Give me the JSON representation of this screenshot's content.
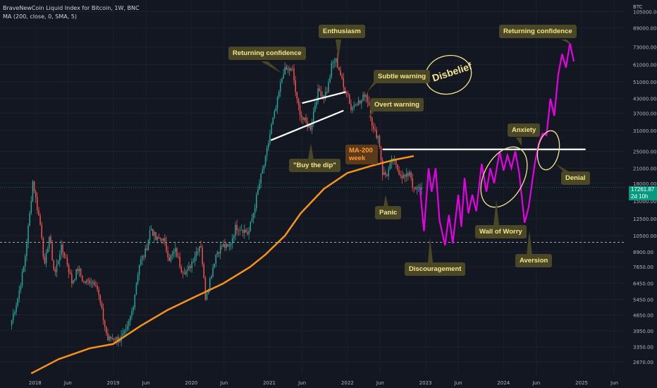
{
  "header": {
    "title": "BraveNewCoin Liquid Index for Bitcoin, 1W, BNC",
    "indicator": "MA (200, close, 0, SMA, 5)"
  },
  "price_tag": {
    "value": "17261.87",
    "countdown": "2d 10h"
  },
  "annotations": {
    "returning_confidence_1": "Returning confidence",
    "enthusiasm": "Enthusiasm",
    "subtle_warning": "Subtle warning",
    "disbelief": "Disbelief",
    "overt_warning": "Overt warning",
    "buy_the_dip": "\"Buy the dip\"",
    "ma200": "MA-200 week",
    "panic": "Panic",
    "discouragement": "Discouragement",
    "wall_of_worry": "Wall of Worry",
    "anxiety": "Anxiety",
    "aversion": "Aversion",
    "returning_confidence_2": "Returning confidence",
    "denial": "Denial"
  },
  "colors": {
    "background": "#131722",
    "up": "#26a69a",
    "down": "#ef5350",
    "ma": "#f7931a",
    "projection": "#e600e6",
    "annotation_bg": "#4a4726",
    "annotation_text": "#f6e58d",
    "trendline": "#ffffff"
  },
  "chart_data": {
    "type": "line",
    "title": "BraveNewCoin Liquid Index for Bitcoin, 1W, BNC",
    "scale": "log",
    "y_axis_label": "BTC",
    "y_ticks": [
      105000,
      89000,
      73000,
      61000,
      51000,
      43000,
      37000,
      31000,
      25000,
      21000,
      18000,
      15000,
      12500,
      10500,
      8900,
      7650,
      6450,
      5450,
      4650,
      3950,
      3350,
      2870
    ],
    "x_ticks": [
      "2018",
      "Jun",
      "2019",
      "Jun",
      "2020",
      "Jun",
      "2021",
      "Jun",
      "2022",
      "Jun",
      "2023",
      "Jun",
      "2024",
      "Jun",
      "2025",
      "Jun"
    ],
    "ylim": [
      2500,
      115000
    ],
    "xlim": [
      2017.55,
      2025.55
    ],
    "horizontal_level": 9800,
    "last_price": 17261.87,
    "series": [
      {
        "type": "candlestick",
        "points": [
          [
            2017.7,
            4400
          ],
          [
            2017.78,
            5600
          ],
          [
            2017.86,
            7800
          ],
          [
            2017.93,
            13000
          ],
          [
            2017.97,
            18500
          ],
          [
            2018.02,
            14500
          ],
          [
            2018.08,
            11000
          ],
          [
            2018.12,
            7500
          ],
          [
            2018.18,
            10500
          ],
          [
            2018.25,
            7000
          ],
          [
            2018.33,
            9300
          ],
          [
            2018.4,
            8200
          ],
          [
            2018.47,
            6500
          ],
          [
            2018.55,
            7500
          ],
          [
            2018.62,
            6500
          ],
          [
            2018.7,
            6600
          ],
          [
            2018.78,
            6500
          ],
          [
            2018.87,
            4500
          ],
          [
            2018.93,
            3600
          ],
          [
            2019.0,
            3700
          ],
          [
            2019.08,
            3600
          ],
          [
            2019.17,
            3900
          ],
          [
            2019.25,
            5000
          ],
          [
            2019.33,
            7800
          ],
          [
            2019.42,
            9000
          ],
          [
            2019.48,
            11500
          ],
          [
            2019.55,
            10000
          ],
          [
            2019.63,
            10300
          ],
          [
            2019.72,
            8300
          ],
          [
            2019.8,
            9000
          ],
          [
            2019.87,
            7500
          ],
          [
            2019.95,
            7200
          ],
          [
            2020.03,
            8400
          ],
          [
            2020.12,
            9800
          ],
          [
            2020.18,
            5600
          ],
          [
            2020.23,
            6500
          ],
          [
            2020.32,
            8800
          ],
          [
            2020.4,
            9500
          ],
          [
            2020.48,
            9200
          ],
          [
            2020.57,
            11500
          ],
          [
            2020.65,
            11300
          ],
          [
            2020.73,
            10700
          ],
          [
            2020.8,
            13500
          ],
          [
            2020.88,
            18500
          ],
          [
            2020.95,
            23000
          ],
          [
            2021.03,
            33000
          ],
          [
            2021.08,
            38000
          ],
          [
            2021.13,
            47000
          ],
          [
            2021.18,
            57000
          ],
          [
            2021.25,
            58000
          ],
          [
            2021.3,
            57000
          ],
          [
            2021.35,
            42000
          ],
          [
            2021.42,
            35000
          ],
          [
            2021.48,
            33000
          ],
          [
            2021.53,
            32000
          ],
          [
            2021.58,
            40000
          ],
          [
            2021.63,
            47000
          ],
          [
            2021.7,
            44000
          ],
          [
            2021.75,
            48000
          ],
          [
            2021.8,
            61000
          ],
          [
            2021.85,
            64000
          ],
          [
            2021.9,
            57000
          ],
          [
            2021.95,
            48000
          ],
          [
            2022.0,
            46000
          ],
          [
            2022.05,
            38000
          ],
          [
            2022.1,
            42000
          ],
          [
            2022.17,
            41000
          ],
          [
            2022.23,
            46000
          ],
          [
            2022.28,
            40000
          ],
          [
            2022.33,
            31000
          ],
          [
            2022.4,
            29000
          ],
          [
            2022.45,
            20000
          ],
          [
            2022.5,
            19500
          ],
          [
            2022.58,
            23000
          ],
          [
            2022.63,
            21000
          ],
          [
            2022.7,
            19500
          ],
          [
            2022.75,
            19000
          ],
          [
            2022.8,
            20500
          ],
          [
            2022.85,
            16500
          ],
          [
            2022.9,
            17000
          ],
          [
            2022.95,
            17261.87
          ]
        ]
      },
      {
        "name": "MA (200, close, 0, SMA, 5)",
        "type": "line",
        "points": [
          [
            2017.95,
            2550
          ],
          [
            2018.3,
            2950
          ],
          [
            2018.7,
            3300
          ],
          [
            2019.0,
            3450
          ],
          [
            2019.35,
            4150
          ],
          [
            2019.7,
            4900
          ],
          [
            2020.0,
            5500
          ],
          [
            2020.4,
            6400
          ],
          [
            2020.75,
            7600
          ],
          [
            2020.95,
            8650
          ],
          [
            2021.2,
            10500
          ],
          [
            2021.4,
            13200
          ],
          [
            2021.7,
            17000
          ],
          [
            2022.0,
            20000
          ],
          [
            2022.3,
            21500
          ],
          [
            2022.6,
            22900
          ],
          [
            2022.85,
            23800
          ]
        ]
      },
      {
        "name": "Projection",
        "type": "line",
        "points": [
          [
            2022.93,
            17000
          ],
          [
            2022.98,
            11000
          ],
          [
            2023.04,
            21000
          ],
          [
            2023.08,
            16500
          ],
          [
            2023.13,
            21000
          ],
          [
            2023.18,
            12300
          ],
          [
            2023.25,
            9500
          ],
          [
            2023.3,
            13000
          ],
          [
            2023.35,
            9700
          ],
          [
            2023.42,
            16000
          ],
          [
            2023.46,
            11500
          ],
          [
            2023.5,
            19000
          ],
          [
            2023.55,
            13200
          ],
          [
            2023.6,
            16000
          ],
          [
            2023.65,
            13500
          ],
          [
            2023.72,
            22000
          ],
          [
            2023.78,
            16500
          ],
          [
            2023.83,
            21000
          ],
          [
            2023.88,
            18000
          ],
          [
            2023.95,
            25000
          ],
          [
            2024.0,
            20500
          ],
          [
            2024.05,
            24000
          ],
          [
            2024.1,
            21000
          ],
          [
            2024.15,
            25000
          ],
          [
            2024.2,
            20000
          ],
          [
            2024.27,
            12000
          ],
          [
            2024.32,
            14000
          ],
          [
            2024.4,
            22000
          ],
          [
            2024.45,
            27000
          ],
          [
            2024.5,
            30000
          ],
          [
            2024.55,
            29500
          ],
          [
            2024.6,
            43000
          ],
          [
            2024.65,
            36000
          ],
          [
            2024.7,
            55000
          ],
          [
            2024.75,
            68000
          ],
          [
            2024.8,
            59000
          ],
          [
            2024.85,
            76000
          ],
          [
            2024.9,
            63000
          ]
        ]
      }
    ],
    "trendlines": [
      {
        "from": [
          2021.02,
          28000
        ],
        "to": [
          2021.95,
          38000
        ]
      },
      {
        "from": [
          2021.42,
          41000
        ],
        "to": [
          2021.98,
          46000
        ]
      },
      {
        "from": [
          2022.45,
          25500
        ],
        "to": [
          2025.05,
          25500
        ]
      }
    ]
  }
}
